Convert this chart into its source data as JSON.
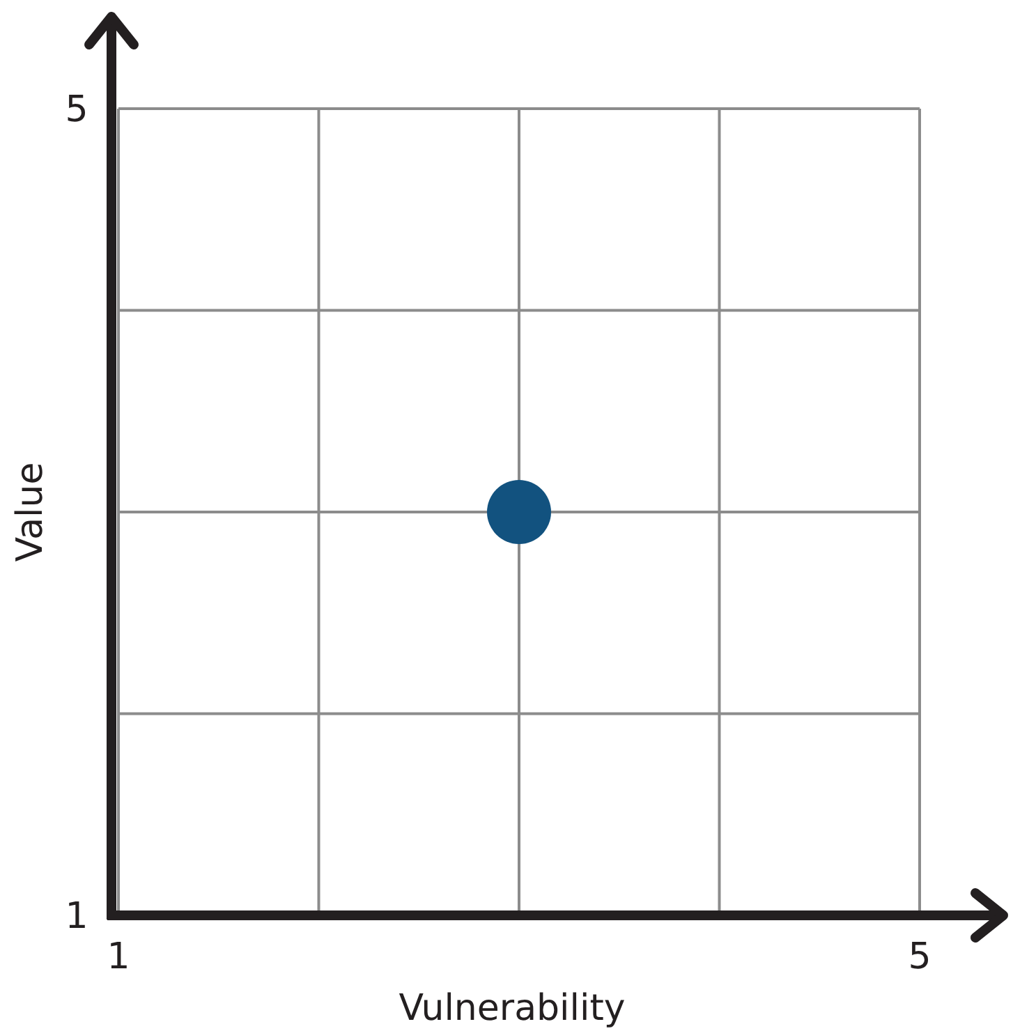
{
  "chart_data": {
    "type": "scatter",
    "xlabel": "Vulnerability",
    "ylabel": "Value",
    "x": [
      3
    ],
    "series": [
      {
        "color": "#12527f",
        "values": [
          3
        ]
      }
    ],
    "xlim": [
      1,
      5
    ],
    "ylim": [
      1,
      5
    ],
    "xticks": [
      1,
      {
        "value": 2,
        "label": null
      },
      {
        "value": 3,
        "label": null
      },
      {
        "value": 4,
        "label": null
      },
      5
    ],
    "yticks": [
      1,
      {
        "value": 2,
        "label": null
      },
      {
        "value": 3,
        "label": null
      },
      {
        "value": 4,
        "label": null
      },
      5
    ],
    "grid": true,
    "marker": "circle"
  }
}
